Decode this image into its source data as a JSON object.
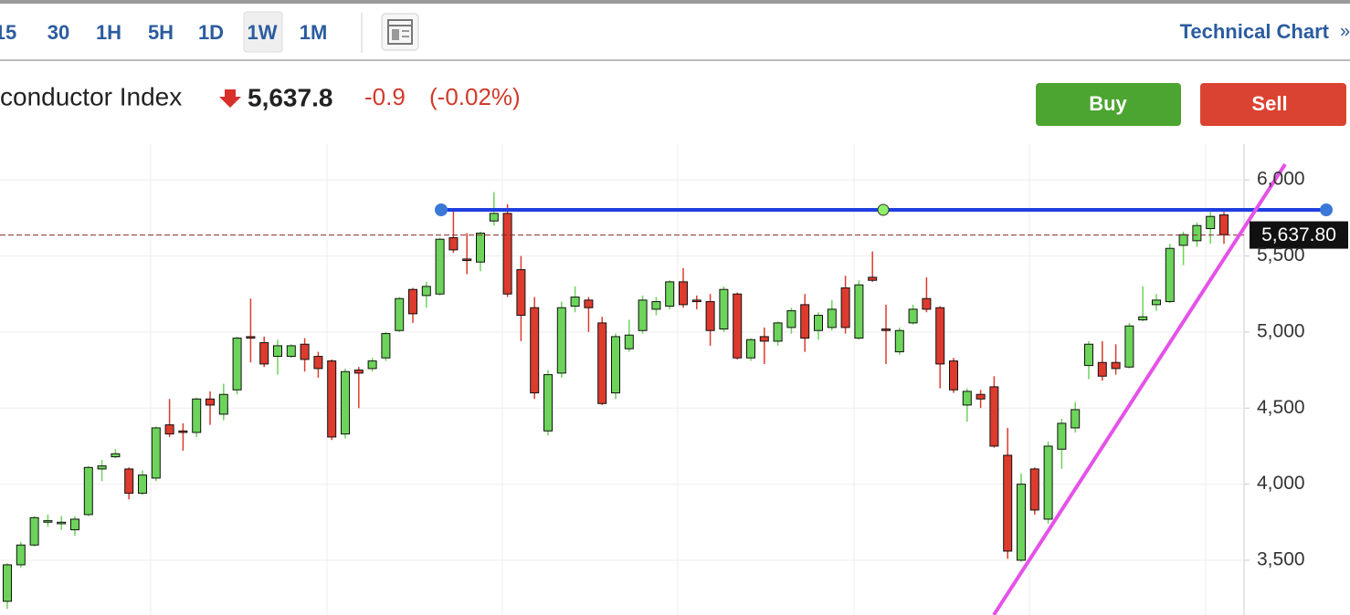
{
  "toolbar": {
    "intervals": [
      "15",
      "30",
      "1H",
      "5H",
      "1D",
      "1W",
      "1M"
    ],
    "selected": "1W",
    "link": "Technical Chart",
    "link_arrow": "»"
  },
  "header": {
    "name": "conductor Index",
    "price": "5,637.8",
    "change": "-0.9",
    "change_pct": "(-0.02%)"
  },
  "buttons": {
    "buy": "Buy",
    "sell": "Sell"
  },
  "chart_data": {
    "type": "candlestick",
    "up_color": "#6cd45a",
    "down_color": "#dc3b2e",
    "ylim": [
      3140,
      6235
    ],
    "yticks": [
      {
        "value": 3500,
        "label": "3,500"
      },
      {
        "value": 4000,
        "label": "4,000"
      },
      {
        "value": 4500,
        "label": "4,500"
      },
      {
        "value": 5000,
        "label": "5,000"
      },
      {
        "value": 5500,
        "label": "5,500"
      },
      {
        "value": 6000,
        "label": "6,000"
      }
    ],
    "grid": true,
    "last_price": {
      "value": 5637.8,
      "label": "5,637.80"
    },
    "open": [
      3230,
      3470,
      3600,
      3750,
      3740,
      3700,
      3800,
      4100,
      4180,
      4100,
      3940,
      4040,
      4390,
      4350,
      4340,
      4560,
      4460,
      4620,
      4970,
      4930,
      4840,
      4840,
      4920,
      4840,
      4810,
      4330,
      4750,
      4760,
      4830,
      5010,
      5280,
      5240,
      5250,
      5620,
      5480,
      5460,
      5730,
      5780,
      5410,
      5160,
      4350,
      4730,
      5170,
      5210,
      5060,
      4600,
      4890,
      5010,
      5150,
      5170,
      5330,
      5210,
      5200,
      5020,
      5250,
      4830,
      4970,
      4940,
      5030,
      5180,
      5010,
      5030,
      5290,
      4960,
      5360,
      5020,
      4870,
      5060,
      5220,
      5160,
      4810,
      4520,
      4590,
      4640,
      4190,
      3500,
      4100,
      3770,
      4230,
      4370,
      4780,
      4800,
      4800,
      4770,
      5080,
      5180,
      5200,
      5570,
      5600,
      5680,
      5770
    ],
    "high": [
      3480,
      3620,
      3790,
      3800,
      3790,
      3790,
      4120,
      4160,
      4230,
      4110,
      4090,
      4380,
      4560,
      4400,
      4570,
      4610,
      4660,
      4970,
      5220,
      4970,
      4950,
      4920,
      4960,
      4870,
      4820,
      4760,
      4770,
      4830,
      5000,
      5230,
      5290,
      5330,
      5620,
      5800,
      5650,
      5660,
      5920,
      5840,
      5500,
      5230,
      4750,
      5200,
      5300,
      5230,
      5100,
      4990,
      5080,
      5240,
      5230,
      5340,
      5420,
      5240,
      5250,
      5300,
      5260,
      4960,
      5030,
      5070,
      5160,
      5250,
      5130,
      5210,
      5370,
      5340,
      5530,
      5180,
      5030,
      5180,
      5360,
      5170,
      4830,
      4630,
      4620,
      4710,
      4370,
      4070,
      4110,
      4280,
      4430,
      4540,
      4940,
      4940,
      4920,
      5060,
      5300,
      5250,
      5580,
      5660,
      5720,
      5790,
      5790
    ],
    "low": [
      3180,
      3450,
      3590,
      3720,
      3700,
      3660,
      3790,
      4020,
      4170,
      3900,
      3930,
      4020,
      4310,
      4220,
      4310,
      4390,
      4420,
      4590,
      4800,
      4770,
      4720,
      4830,
      4740,
      4700,
      4290,
      4300,
      4500,
      4740,
      4810,
      5000,
      5060,
      5160,
      5240,
      5520,
      5380,
      5400,
      5700,
      5230,
      4940,
      4560,
      4320,
      4700,
      5130,
      5000,
      4520,
      4560,
      4870,
      4990,
      5110,
      5150,
      5160,
      5150,
      4910,
      5000,
      4820,
      4810,
      4790,
      4910,
      4990,
      4870,
      4950,
      5010,
      4990,
      4950,
      5330,
      4790,
      4850,
      5050,
      5130,
      4630,
      4600,
      4410,
      4500,
      4240,
      3510,
      3490,
      3800,
      3740,
      4100,
      4340,
      4690,
      4680,
      4720,
      4760,
      5070,
      5140,
      5190,
      5440,
      5560,
      5580,
      5580
    ],
    "close": [
      3470,
      3600,
      3780,
      3760,
      3750,
      3770,
      4110,
      4120,
      4200,
      3940,
      4060,
      4370,
      4330,
      4340,
      4560,
      4520,
      4590,
      4960,
      4960,
      4790,
      4910,
      4910,
      4820,
      4760,
      4310,
      4740,
      4730,
      4810,
      4990,
      5220,
      5120,
      5300,
      5610,
      5540,
      5470,
      5650,
      5780,
      5250,
      5110,
      4600,
      4720,
      5160,
      5230,
      5160,
      4530,
      4970,
      4980,
      5210,
      5200,
      5330,
      5180,
      5200,
      5010,
      5280,
      4830,
      4950,
      4940,
      5060,
      5140,
      4960,
      5110,
      5150,
      5030,
      5310,
      5340,
      5010,
      5010,
      5150,
      5150,
      4790,
      4620,
      4610,
      4560,
      4250,
      3560,
      4000,
      3830,
      4250,
      4400,
      4490,
      4920,
      4710,
      4760,
      5040,
      5100,
      5210,
      5550,
      5640,
      5700,
      5760,
      5640
    ]
  }
}
